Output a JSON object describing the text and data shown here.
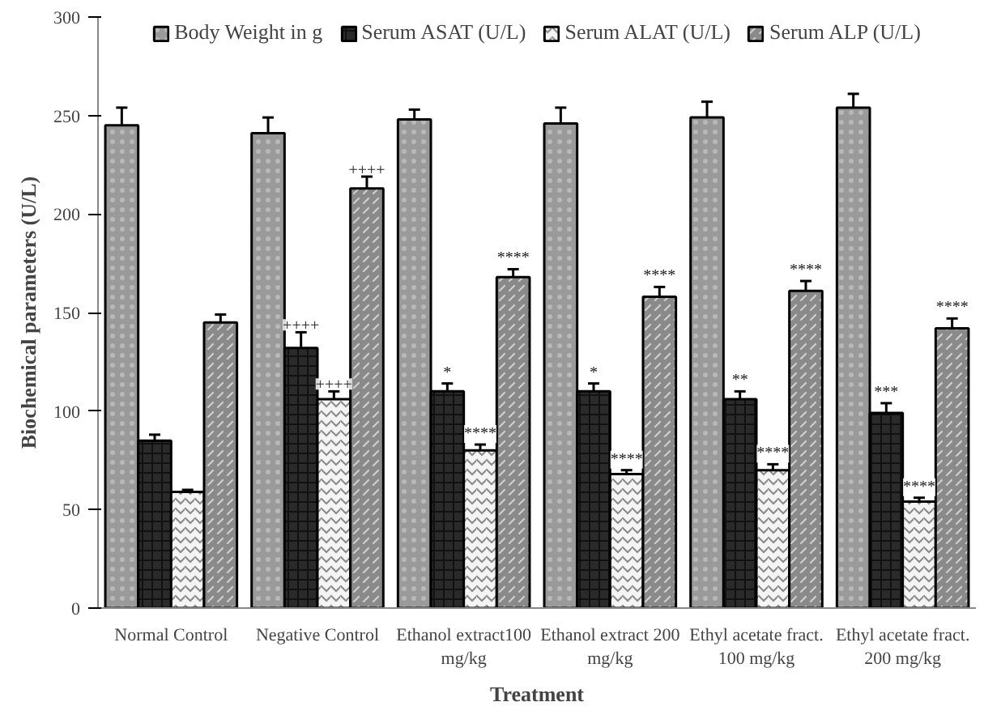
{
  "chart_data": {
    "type": "bar",
    "xlabel": "Treatment",
    "ylabel": "Biochemical parameters (U/L)",
    "categories": [
      "Normal Control",
      "Negative Control",
      "Ethanol extract100 mg/kg",
      "Ethanol extract 200 mg/kg",
      "Ethyl acetate fract. 100 mg/kg",
      "Ethyl acetate fract. 200 mg/kg"
    ],
    "series": [
      {
        "name": "Body Weight in g",
        "color": "#9a9a9a",
        "values": [
          245,
          241,
          248,
          246,
          249,
          254
        ],
        "errors": [
          9,
          8,
          5,
          8,
          8,
          7
        ]
      },
      {
        "name": "Serum ASAT (U/L)",
        "color": "#2a2a2a",
        "values": [
          85,
          132,
          110,
          110,
          106,
          99
        ],
        "errors": [
          3,
          8,
          4,
          4,
          4,
          5
        ],
        "value_labels": [
          null,
          "++++",
          "*",
          "*",
          "**",
          "***"
        ]
      },
      {
        "name": "Serum ALAT (U/L)",
        "color": "#f4f4f4",
        "values": [
          59,
          106,
          80,
          68,
          70,
          54
        ],
        "errors": [
          1,
          4,
          3,
          2,
          3,
          2
        ],
        "value_labels": [
          null,
          "++++",
          "****",
          "****",
          "****",
          "****"
        ]
      },
      {
        "name": "Serum ALP (U/L)",
        "color": "#8a8a8a",
        "values": [
          145,
          213,
          168,
          158,
          161,
          142
        ],
        "errors": [
          4,
          6,
          4,
          5,
          5,
          5
        ],
        "value_labels": [
          null,
          "++++",
          "****",
          "****",
          "****",
          "****"
        ]
      }
    ],
    "ylim": [
      0,
      300
    ],
    "yticks": [
      0,
      50,
      100,
      150,
      200,
      250,
      300
    ],
    "grid": false,
    "legend": "top"
  }
}
